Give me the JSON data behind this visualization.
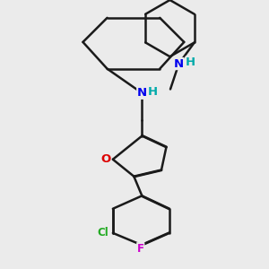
{
  "background_color": "#ebebeb",
  "bond_color": "#1a1a1a",
  "bond_width": 1.8,
  "dbo": 0.018,
  "atom_labels": {
    "O": {
      "color": "#dd0000",
      "fontsize": 9.5
    },
    "N": {
      "color": "#0000ee",
      "fontsize": 9.5
    },
    "Cl": {
      "color": "#22aa22",
      "fontsize": 8.5
    },
    "F": {
      "color": "#cc00cc",
      "fontsize": 8.5
    },
    "H": {
      "color": "#00aaaa",
      "fontsize": 9.5
    }
  },
  "figsize": [
    3.0,
    3.0
  ],
  "dpi": 100
}
